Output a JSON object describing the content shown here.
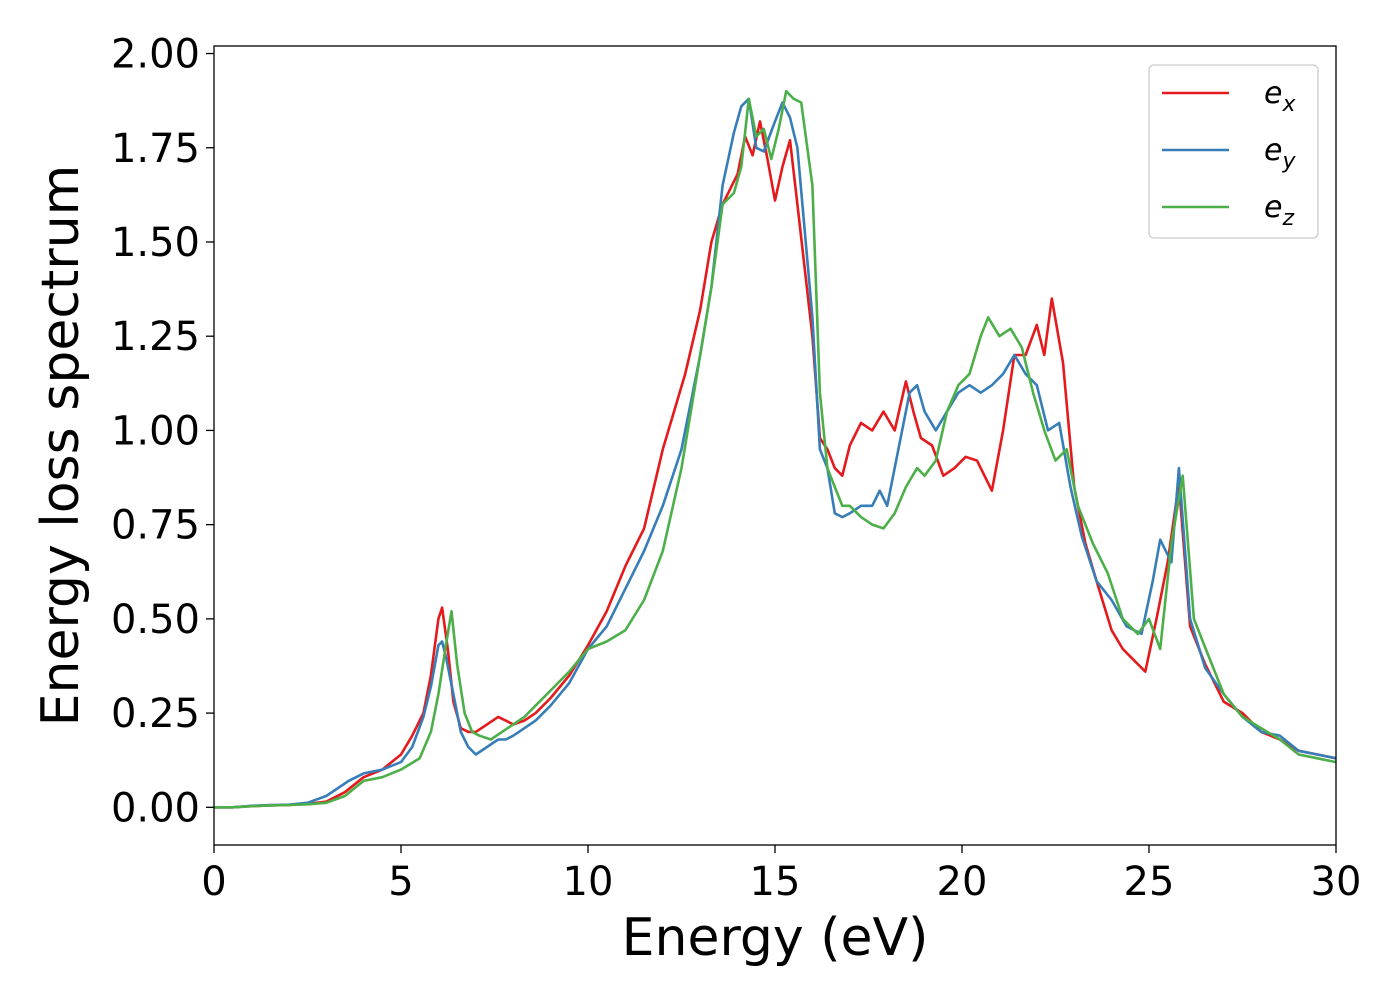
{
  "chart_data": {
    "type": "line",
    "title": "",
    "xlabel": "Energy (eV)",
    "ylabel": "Energy loss spectrum",
    "xlim": [
      0,
      30
    ],
    "ylim": [
      -0.1,
      2.02
    ],
    "xticks": [
      0,
      5,
      10,
      15,
      20,
      25,
      30
    ],
    "xtick_labels": [
      "0",
      "5",
      "10",
      "15",
      "20",
      "25",
      "30"
    ],
    "yticks": [
      0,
      0.25,
      0.5,
      0.75,
      1.0,
      1.25,
      1.5,
      1.75,
      2.0
    ],
    "ytick_labels": [
      "0.00",
      "0.25",
      "0.50",
      "0.75",
      "1.00",
      "1.25",
      "1.50",
      "1.75",
      "2.00"
    ],
    "grid": false,
    "legend_position": "top-right",
    "series": [
      {
        "name": "e_x",
        "base": "e",
        "sub": "x",
        "color": "#e41a1c",
        "x": [
          0,
          0.5,
          1,
          1.5,
          2,
          2.5,
          3,
          3.5,
          4,
          4.5,
          5,
          5.3,
          5.6,
          5.8,
          6.0,
          6.1,
          6.25,
          6.4,
          6.6,
          6.8,
          7.0,
          7.3,
          7.6,
          7.8,
          8.0,
          8.3,
          8.6,
          9,
          9.5,
          10,
          10.5,
          11,
          11.5,
          12,
          12.3,
          12.6,
          13,
          13.3,
          13.6,
          14,
          14.2,
          14.4,
          14.6,
          14.8,
          15,
          15.2,
          15.4,
          15.6,
          16,
          16.2,
          16.4,
          16.6,
          16.8,
          17,
          17.3,
          17.6,
          17.9,
          18.2,
          18.5,
          18.7,
          18.9,
          19.2,
          19.5,
          19.8,
          20.1,
          20.4,
          20.8,
          21.1,
          21.4,
          21.7,
          22.0,
          22.2,
          22.4,
          22.7,
          23.0,
          23.3,
          23.6,
          24,
          24.3,
          24.6,
          24.9,
          25.2,
          25.5,
          25.8,
          26.1,
          26.5,
          27,
          27.5,
          28,
          28.5,
          29,
          29.5,
          30
        ],
        "y": [
          0,
          0.0,
          0.003,
          0.005,
          0.006,
          0.009,
          0.015,
          0.04,
          0.08,
          0.1,
          0.14,
          0.19,
          0.25,
          0.35,
          0.5,
          0.53,
          0.42,
          0.28,
          0.21,
          0.2,
          0.2,
          0.22,
          0.24,
          0.23,
          0.22,
          0.23,
          0.25,
          0.29,
          0.35,
          0.43,
          0.52,
          0.64,
          0.74,
          0.95,
          1.05,
          1.15,
          1.32,
          1.5,
          1.6,
          1.68,
          1.78,
          1.73,
          1.82,
          1.72,
          1.61,
          1.7,
          1.77,
          1.6,
          1.25,
          0.98,
          0.95,
          0.9,
          0.88,
          0.96,
          1.02,
          1.0,
          1.05,
          1.0,
          1.13,
          1.05,
          0.98,
          0.96,
          0.88,
          0.9,
          0.93,
          0.92,
          0.84,
          1.0,
          1.2,
          1.2,
          1.28,
          1.2,
          1.35,
          1.18,
          0.85,
          0.7,
          0.6,
          0.47,
          0.42,
          0.39,
          0.36,
          0.5,
          0.65,
          0.86,
          0.48,
          0.38,
          0.28,
          0.25,
          0.2,
          0.18,
          0.15,
          0.14,
          0.13
        ]
      },
      {
        "name": "e_y",
        "base": "e",
        "sub": "y",
        "color": "#377eb8",
        "x": [
          0,
          0.5,
          1,
          1.5,
          2,
          2.5,
          3,
          3.3,
          3.6,
          4,
          4.5,
          5,
          5.3,
          5.6,
          5.8,
          6.0,
          6.1,
          6.2,
          6.4,
          6.6,
          6.8,
          7.0,
          7.3,
          7.6,
          7.8,
          8.0,
          8.3,
          8.6,
          9,
          9.5,
          10,
          10.5,
          11,
          11.5,
          12,
          12.5,
          13,
          13.3,
          13.6,
          13.9,
          14.1,
          14.3,
          14.5,
          14.7,
          15,
          15.2,
          15.4,
          15.6,
          16,
          16.2,
          16.4,
          16.6,
          16.8,
          17,
          17.3,
          17.6,
          17.8,
          18.0,
          18.3,
          18.6,
          18.8,
          19.0,
          19.3,
          19.6,
          19.9,
          20.2,
          20.5,
          20.8,
          21.1,
          21.4,
          21.7,
          22,
          22.3,
          22.6,
          22.9,
          23.2,
          23.6,
          24,
          24.4,
          24.8,
          25.1,
          25.3,
          25.6,
          25.8,
          26.1,
          26.5,
          27,
          27.5,
          28,
          28.5,
          29,
          29.5,
          30
        ],
        "y": [
          0,
          0.0,
          0.004,
          0.006,
          0.007,
          0.012,
          0.03,
          0.05,
          0.07,
          0.09,
          0.1,
          0.12,
          0.16,
          0.24,
          0.32,
          0.43,
          0.44,
          0.4,
          0.3,
          0.2,
          0.16,
          0.14,
          0.16,
          0.18,
          0.18,
          0.19,
          0.21,
          0.23,
          0.27,
          0.33,
          0.42,
          0.48,
          0.58,
          0.68,
          0.8,
          0.95,
          1.2,
          1.38,
          1.65,
          1.79,
          1.86,
          1.88,
          1.75,
          1.74,
          1.82,
          1.87,
          1.83,
          1.75,
          1.3,
          0.95,
          0.9,
          0.78,
          0.77,
          0.78,
          0.8,
          0.8,
          0.84,
          0.8,
          0.95,
          1.1,
          1.12,
          1.05,
          1.0,
          1.05,
          1.1,
          1.12,
          1.1,
          1.12,
          1.15,
          1.2,
          1.15,
          1.12,
          1.0,
          1.02,
          0.85,
          0.72,
          0.6,
          0.55,
          0.48,
          0.46,
          0.6,
          0.71,
          0.65,
          0.9,
          0.5,
          0.37,
          0.3,
          0.24,
          0.2,
          0.19,
          0.15,
          0.14,
          0.13
        ]
      },
      {
        "name": "e_z",
        "base": "e",
        "sub": "z",
        "color": "#4daf4a",
        "x": [
          0,
          0.5,
          1,
          1.5,
          2,
          2.5,
          3,
          3.5,
          4,
          4.5,
          5,
          5.5,
          5.8,
          6.0,
          6.2,
          6.35,
          6.5,
          6.7,
          6.9,
          7.1,
          7.4,
          7.7,
          8.0,
          8.3,
          8.6,
          9,
          9.5,
          10,
          10.5,
          11,
          11.5,
          12,
          12.5,
          13,
          13.3,
          13.6,
          13.9,
          14.1,
          14.3,
          14.5,
          14.7,
          14.9,
          15.1,
          15.3,
          15.5,
          15.7,
          16,
          16.2,
          16.4,
          16.6,
          16.8,
          17,
          17.3,
          17.6,
          17.9,
          18.2,
          18.5,
          18.8,
          19.0,
          19.3,
          19.6,
          19.9,
          20.2,
          20.5,
          20.7,
          21.0,
          21.3,
          21.6,
          21.9,
          22.2,
          22.5,
          22.8,
          23.1,
          23.5,
          23.9,
          24.3,
          24.7,
          25.0,
          25.3,
          25.6,
          25.9,
          26.2,
          26.6,
          27,
          27.5,
          28,
          28.5,
          29,
          29.5,
          30
        ],
        "y": [
          0,
          0.0,
          0.003,
          0.005,
          0.006,
          0.008,
          0.012,
          0.03,
          0.07,
          0.08,
          0.1,
          0.13,
          0.2,
          0.3,
          0.43,
          0.52,
          0.38,
          0.25,
          0.2,
          0.19,
          0.18,
          0.2,
          0.22,
          0.24,
          0.27,
          0.31,
          0.36,
          0.42,
          0.44,
          0.47,
          0.55,
          0.68,
          0.9,
          1.2,
          1.38,
          1.6,
          1.63,
          1.7,
          1.88,
          1.78,
          1.8,
          1.72,
          1.8,
          1.9,
          1.88,
          1.87,
          1.65,
          1.1,
          0.9,
          0.85,
          0.8,
          0.8,
          0.77,
          0.75,
          0.74,
          0.78,
          0.85,
          0.9,
          0.88,
          0.92,
          1.05,
          1.12,
          1.15,
          1.25,
          1.3,
          1.25,
          1.27,
          1.22,
          1.1,
          1.0,
          0.92,
          0.95,
          0.8,
          0.7,
          0.62,
          0.5,
          0.46,
          0.5,
          0.42,
          0.7,
          0.88,
          0.5,
          0.4,
          0.3,
          0.24,
          0.21,
          0.18,
          0.14,
          0.13,
          0.12
        ]
      }
    ]
  }
}
